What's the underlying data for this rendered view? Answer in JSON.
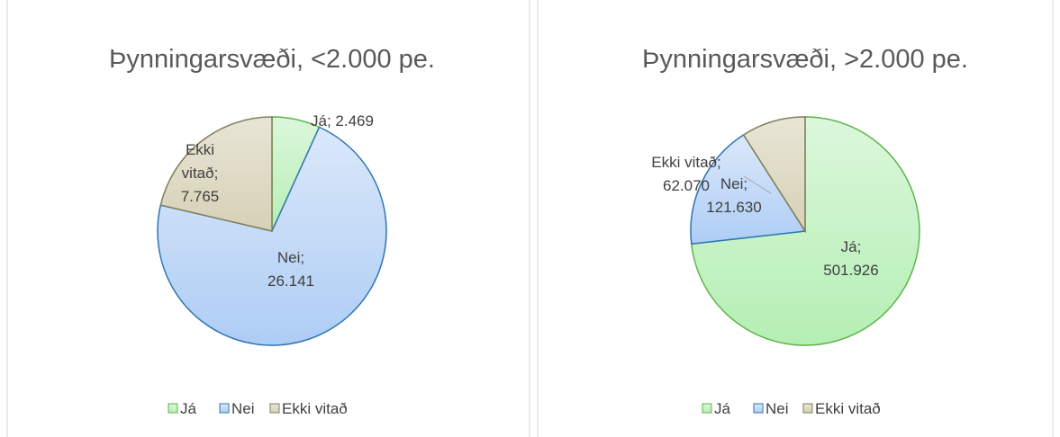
{
  "chart_data": [
    {
      "type": "pie",
      "title": "Þynningarsvæði, <2.000 pe.",
      "categories": [
        "Já",
        "Nei",
        "Ekki vitað"
      ],
      "values": [
        2469,
        26141,
        7765
      ],
      "value_labels": [
        "Já; 2.469",
        "Nei; 26.141",
        "Ekki vitað; 7.765"
      ],
      "colors": [
        "#5fb34a",
        "#2e75b6",
        "#7f7f5a"
      ],
      "legend": "bottom"
    },
    {
      "type": "pie",
      "title": "Þynningarsvæði, >2.000 pe.",
      "categories": [
        "Já",
        "Nei",
        "Ekki vitað"
      ],
      "values": [
        501926,
        121630,
        62070
      ],
      "value_labels": [
        "Já; 501.926",
        "Nei; 121.630",
        "Ekki vitað; 62.070"
      ],
      "colors": [
        "#5fb34a",
        "#2e75b6",
        "#7f7f5a"
      ],
      "legend": "bottom"
    }
  ]
}
